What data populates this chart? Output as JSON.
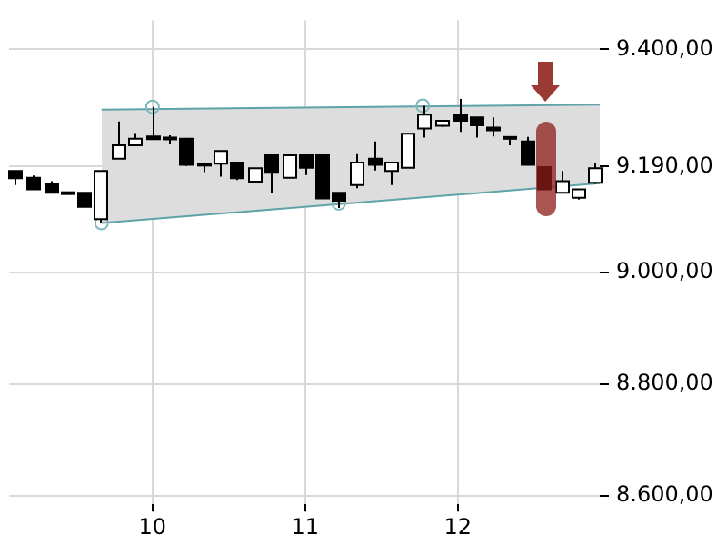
{
  "chart_data": {
    "type": "candlestick",
    "x": [
      9.1,
      9.22,
      9.33,
      9.44,
      9.55,
      9.66,
      9.77,
      9.88,
      10.0,
      10.11,
      10.22,
      10.33,
      10.44,
      10.55,
      10.67,
      10.78,
      10.89,
      11.0,
      11.11,
      11.22,
      11.34,
      11.45,
      11.56,
      11.67,
      11.78,
      11.89,
      12.01,
      12.12,
      12.23,
      12.34,
      12.45,
      12.56,
      12.68,
      12.79,
      12.9
    ],
    "ohlc": [
      [
        9182,
        9182,
        9157,
        9169
      ],
      [
        9170,
        9174,
        9149,
        9149
      ],
      [
        9159,
        9164,
        9143,
        9143
      ],
      [
        9144,
        9145,
        9143,
        9144
      ],
      [
        9143,
        9143,
        9118,
        9118
      ],
      [
        9096,
        9182,
        9089,
        9182
      ],
      [
        9204,
        9271,
        9204,
        9228
      ],
      [
        9228,
        9250,
        9228,
        9240
      ],
      [
        9244,
        9297,
        9239,
        9239
      ],
      [
        9242,
        9246,
        9230,
        9239
      ],
      [
        9240,
        9240,
        9191,
        9193
      ],
      [
        9195,
        9195,
        9180,
        9193
      ],
      [
        9195,
        9218,
        9172,
        9218
      ],
      [
        9197,
        9197,
        9166,
        9169
      ],
      [
        9163,
        9187,
        9161,
        9187
      ],
      [
        9210,
        9210,
        9142,
        9179
      ],
      [
        9170,
        9210,
        9170,
        9210
      ],
      [
        9210,
        9210,
        9175,
        9188
      ],
      [
        9211,
        9211,
        9133,
        9133
      ],
      [
        9143,
        9143,
        9116,
        9129
      ],
      [
        9157,
        9214,
        9151,
        9197
      ],
      [
        9204,
        9235,
        9183,
        9193
      ],
      [
        9182,
        9197,
        9157,
        9197
      ],
      [
        9188,
        9249,
        9188,
        9249
      ],
      [
        9258,
        9299,
        9242,
        9283
      ],
      [
        9263,
        9272,
        9261,
        9272
      ],
      [
        9283,
        9311,
        9252,
        9272
      ],
      [
        9278,
        9278,
        9242,
        9264
      ],
      [
        9260,
        9278,
        9244,
        9255
      ],
      [
        9243,
        9243,
        9228,
        9240
      ],
      [
        9235,
        9243,
        9193,
        9193
      ],
      [
        9189,
        9189,
        9149,
        9149
      ],
      [
        9143,
        9182,
        9143,
        9164
      ],
      [
        9134,
        9149,
        9131,
        9149
      ],
      [
        9161,
        9197,
        9159,
        9187
      ]
    ],
    "color": "#000000",
    "colors": [
      "#000000",
      "#000000",
      "#000000",
      "#000000",
      "#000000",
      "#ffffff",
      "#ffffff",
      "#ffffff",
      "#000000",
      "#000000",
      "#000000",
      "#000000",
      "#ffffff",
      "#000000",
      "#ffffff",
      "#000000",
      "#ffffff",
      "#000000",
      "#000000",
      "#000000",
      "#ffffff",
      "#000000",
      "#ffffff",
      "#ffffff",
      "#ffffff",
      "#ffffff",
      "#000000",
      "#000000",
      "#000000",
      "#000000",
      "#000000",
      "#000000",
      "#ffffff",
      "#ffffff",
      "#ffffff"
    ],
    "series": [
      {
        "type": "line",
        "color": "#5fa3a8",
        "x": [
          9.666,
          12.93
        ],
        "values": [
          9292,
          9301
        ],
        "lower": [
          9089,
          9160
        ],
        "upper": [
          9292,
          9301
        ]
      },
      {
        "type": "line",
        "color": "#5fa3a8",
        "x": [
          9.666,
          12.93
        ],
        "values": [
          9089,
          9160
        ]
      },
      {
        "type": "scatter",
        "color": "#7fb8bc",
        "x": [
          9.666,
          10.0,
          11.22,
          11.77
        ],
        "values": [
          9089,
          9297,
          9124,
          9299
        ]
      }
    ],
    "xlim": [
      9.06,
      12.93
    ],
    "xticks": [
      10,
      11,
      12
    ],
    "ylim": [
      8585,
      9452
    ],
    "yticks": [
      {
        "value": 8600,
        "label": "8.600,00"
      },
      {
        "value": 8800,
        "label": "8.800,00"
      },
      {
        "value": 9000,
        "label": "9.000,00"
      },
      {
        "value": 9190,
        "label": "9.190,00"
      },
      {
        "value": 9400,
        "label": "9.400,00"
      }
    ],
    "grid": true
  }
}
